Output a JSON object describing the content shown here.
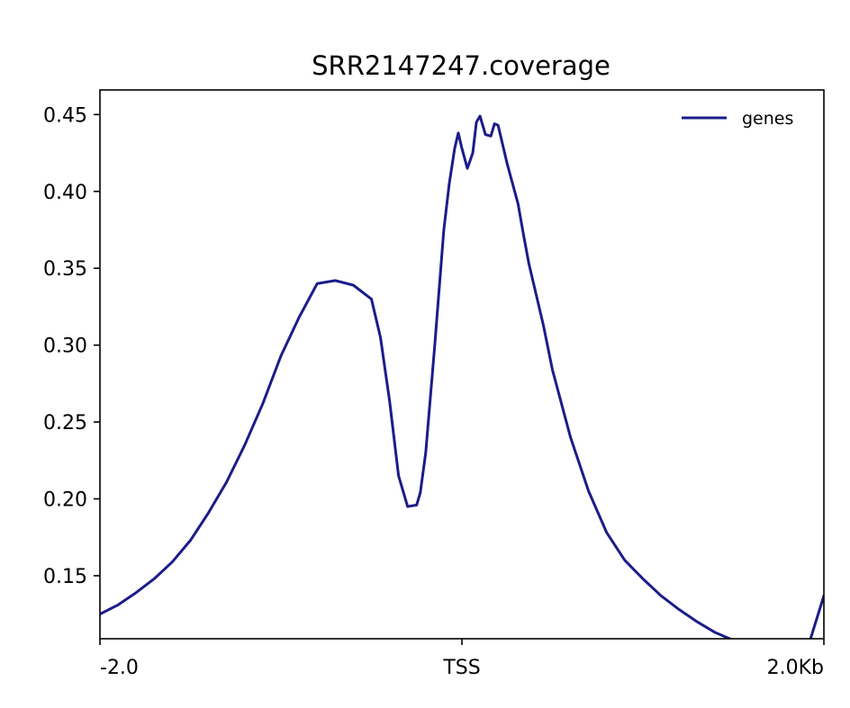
{
  "chart_data": {
    "type": "line",
    "title": "SRR2147247.coverage",
    "xlabel": "",
    "ylabel": "",
    "xlim": [
      -2000,
      2000
    ],
    "ylim": [
      0.109,
      0.466
    ],
    "x_ticks": [
      {
        "value": -2000,
        "label": "-2.0"
      },
      {
        "value": 0,
        "label": "TSS"
      },
      {
        "value": 2000,
        "label": "2.0Kb"
      }
    ],
    "y_ticks": [
      {
        "value": 0.15,
        "label": "0.15"
      },
      {
        "value": 0.2,
        "label": "0.20"
      },
      {
        "value": 0.25,
        "label": "0.25"
      },
      {
        "value": 0.3,
        "label": "0.30"
      },
      {
        "value": 0.35,
        "label": "0.35"
      },
      {
        "value": 0.4,
        "label": "0.40"
      },
      {
        "value": 0.45,
        "label": "0.45"
      }
    ],
    "grid": false,
    "legend": {
      "position": "top-right"
    },
    "series": [
      {
        "name": "genes",
        "color": "#1c1c8a",
        "x": [
          -2000,
          -1900,
          -1800,
          -1700,
          -1600,
          -1500,
          -1400,
          -1300,
          -1200,
          -1100,
          -1000,
          -900,
          -800,
          -700,
          -600,
          -500,
          -450,
          -400,
          -350,
          -300,
          -250,
          -230,
          -200,
          -150,
          -100,
          -70,
          -40,
          -20,
          0,
          30,
          60,
          80,
          100,
          130,
          160,
          180,
          200,
          230,
          250,
          280,
          310,
          340,
          370,
          400,
          450,
          500,
          600,
          700,
          800,
          900,
          1000,
          1100,
          1200,
          1300,
          1400,
          1500,
          1600,
          1700,
          1800,
          1900,
          2000
        ],
        "y": [
          0.125,
          0.131,
          0.139,
          0.148,
          0.159,
          0.173,
          0.191,
          0.211,
          0.235,
          0.262,
          0.293,
          0.318,
          0.34,
          0.342,
          0.339,
          0.33,
          0.305,
          0.264,
          0.215,
          0.195,
          0.196,
          0.204,
          0.23,
          0.3,
          0.375,
          0.405,
          0.428,
          0.438,
          0.428,
          0.415,
          0.425,
          0.445,
          0.449,
          0.437,
          0.436,
          0.444,
          0.443,
          0.428,
          0.418,
          0.405,
          0.392,
          0.372,
          0.353,
          0.338,
          0.313,
          0.284,
          0.24,
          0.205,
          0.178,
          0.16,
          0.148,
          0.137,
          0.128,
          0.12,
          0.113,
          0.108,
          0.104,
          0.101,
          0.099,
          0.099,
          0.137
        ]
      }
    ]
  }
}
